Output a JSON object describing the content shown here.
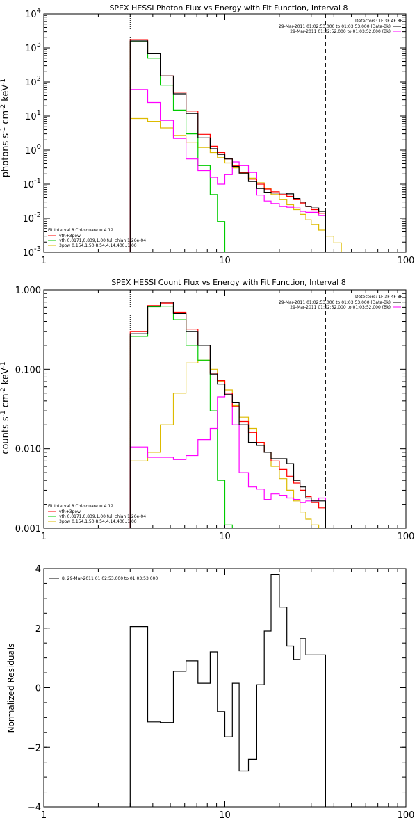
{
  "chart_data": [
    {
      "type": "line",
      "title": "SPEX HESSI Photon Flux vs Energy with Fit Function, Interval 8",
      "xlabel": "",
      "ylabel": "photons s⁻¹ cm⁻² keV⁻¹",
      "xscale": "log",
      "yscale": "log",
      "xlim": [
        1,
        100
      ],
      "ylim": [
        0.001,
        10000
      ],
      "x_ticks": [
        {
          "v": 1,
          "label": "1"
        },
        {
          "v": 10,
          "label": "10"
        },
        {
          "v": 100,
          "label": "100"
        }
      ],
      "y_ticks": [
        {
          "v": 0.001,
          "b": "10",
          "e": "-3"
        },
        {
          "v": 0.01,
          "b": "10",
          "e": "-2"
        },
        {
          "v": 0.1,
          "b": "10",
          "e": "-1"
        },
        {
          "v": 1,
          "b": "10",
          "e": "0"
        },
        {
          "v": 10,
          "b": "10",
          "e": "1"
        },
        {
          "v": 100,
          "b": "10",
          "e": "2"
        },
        {
          "v": 1000,
          "b": "10",
          "e": "3"
        },
        {
          "v": 10000,
          "b": "10",
          "e": "4"
        }
      ],
      "vlines": [
        {
          "x": 3,
          "style": "dotted"
        },
        {
          "x": 36,
          "style": "dashed"
        }
      ],
      "detectors": "Detectors: 1F 3F 4F 8F",
      "legend_top": [
        {
          "text": "29-Mar-2011 01:02:53.000 to 01:03:53.000 (Data-Bk)",
          "color": "#000000"
        },
        {
          "text": "29-Mar-2011 01:02:52.000 to 01:03:52.000 (Bk)",
          "color": "#ff00ff"
        }
      ],
      "fit_title": "Fit Interval 8   Chi-square = 4.12",
      "legend_bottom": [
        {
          "text": "vth+3pow",
          "color": "#ff0000"
        },
        {
          "text": "vth 0.0171,0.839,1.00  full chian 1.26e-04",
          "color": "#00cc00"
        },
        {
          "text": "3pow 0.154,1.50,8.54,4.14,400.,1.00",
          "color": "#ddbb00"
        }
      ],
      "bin_edges": [
        3,
        3.75,
        4.4,
        5.2,
        6.1,
        7.1,
        8.3,
        9.1,
        10,
        11,
        12,
        13.5,
        15,
        16.5,
        18,
        20,
        22,
        24,
        26,
        28,
        30,
        33,
        36,
        40,
        44
      ],
      "series": [
        {
          "name": "Data-Bk",
          "color": "#000000",
          "values": [
            1600,
            700,
            150,
            45,
            12,
            2.3,
            1.1,
            0.75,
            0.55,
            0.33,
            0.21,
            0.12,
            0.075,
            0.058,
            0.055,
            0.055,
            0.052,
            0.038,
            0.03,
            0.022,
            0.02,
            0.016,
            null,
            null
          ]
        },
        {
          "name": "vth+3pow",
          "color": "#ff0000",
          "values": [
            1750,
            700,
            150,
            50,
            14,
            2.9,
            1.3,
            0.85,
            0.55,
            0.35,
            0.22,
            0.14,
            0.1,
            0.072,
            0.06,
            0.05,
            0.044,
            0.035,
            0.028,
            0.022,
            0.018,
            0.014,
            null,
            null
          ]
        },
        {
          "name": "vth",
          "color": "#00cc00",
          "values": [
            1500,
            500,
            80,
            15,
            3,
            0.35,
            0.05,
            0.008,
            0.0008,
            null,
            null,
            null,
            null,
            null,
            null,
            null,
            null,
            null,
            null,
            null,
            null,
            null,
            null,
            null
          ]
        },
        {
          "name": "3pow",
          "color": "#ddbb00",
          "values": [
            8.5,
            7,
            4.5,
            2.7,
            1.7,
            1.2,
            0.85,
            0.6,
            0.42,
            0.3,
            0.21,
            0.15,
            0.11,
            0.075,
            0.05,
            0.035,
            0.025,
            0.018,
            0.013,
            0.009,
            0.0065,
            0.0045,
            0.003,
            0.0019
          ]
        },
        {
          "name": "Bk",
          "color": "#ff00ff",
          "values": [
            60,
            25,
            7.5,
            2.2,
            0.55,
            0.25,
            0.16,
            0.1,
            0.19,
            0.45,
            0.35,
            0.22,
            0.048,
            0.032,
            0.027,
            0.022,
            0.021,
            0.02,
            0.016,
            0.015,
            0.015,
            0.012,
            null,
            null
          ]
        }
      ]
    },
    {
      "type": "line",
      "title": "SPEX HESSI Count Flux vs Energy with Fit Function, Interval 8",
      "xlabel": "",
      "ylabel": "counts s⁻¹ cm⁻² keV⁻¹",
      "xscale": "log",
      "yscale": "log",
      "xlim": [
        1,
        100
      ],
      "ylim": [
        0.001,
        1
      ],
      "x_ticks": [
        {
          "v": 1,
          "label": "1"
        },
        {
          "v": 10,
          "label": "10"
        },
        {
          "v": 100,
          "label": "100"
        }
      ],
      "y_ticks": [
        {
          "v": 0.001,
          "label": "0.001"
        },
        {
          "v": 0.01,
          "label": "0.010"
        },
        {
          "v": 0.1,
          "label": "0.100"
        },
        {
          "v": 1,
          "label": "1.000"
        }
      ],
      "vlines": [
        {
          "x": 3,
          "style": "dotted"
        },
        {
          "x": 36,
          "style": "dashed"
        }
      ],
      "detectors": "Detectors: 1F 3F 4F 8F",
      "legend_top": [
        {
          "text": "29-Mar-2011 01:02:53.000 to 01:03:53.000 (Data-Bk)",
          "color": "#000000"
        },
        {
          "text": "29-Mar-2011 01:02:52.000 to 01:03:52.000 (Bk)",
          "color": "#ff00ff"
        }
      ],
      "fit_title": "Fit Interval 8   Chi-square = 4.12",
      "legend_bottom": [
        {
          "text": "vth+3pow",
          "color": "#ff0000"
        },
        {
          "text": "vth 0.0171,0.839,1.00  full chian 1.26e-04",
          "color": "#00cc00"
        },
        {
          "text": "3pow 0.154,1.50,8.54,4.14,400.,1.00",
          "color": "#ddbb00"
        }
      ],
      "bin_edges": [
        3,
        3.75,
        4.4,
        5.2,
        6.1,
        7.1,
        8.3,
        9.1,
        10,
        11,
        12,
        13.5,
        15,
        16.5,
        18,
        20,
        22,
        24,
        26,
        28,
        30,
        33,
        36
      ],
      "series": [
        {
          "name": "Data-Bk",
          "color": "#000000",
          "values": [
            0.28,
            0.62,
            0.7,
            0.5,
            0.3,
            0.2,
            0.087,
            0.065,
            0.048,
            0.038,
            0.02,
            0.012,
            0.011,
            0.009,
            0.0075,
            0.0075,
            0.0065,
            0.004,
            0.0033,
            0.0024,
            0.0022,
            0.0022
          ]
        },
        {
          "name": "vth+3pow",
          "color": "#ff0000",
          "values": [
            0.3,
            0.63,
            0.68,
            0.52,
            0.32,
            0.2,
            0.09,
            0.072,
            0.05,
            0.034,
            0.022,
            0.016,
            0.012,
            0.009,
            0.007,
            0.0055,
            0.0045,
            0.0037,
            0.003,
            0.0025,
            0.0021,
            0.0018
          ]
        },
        {
          "name": "vth",
          "color": "#00cc00",
          "values": [
            0.26,
            0.61,
            0.62,
            0.42,
            0.2,
            0.13,
            0.03,
            0.004,
            0.0011,
            0.0001,
            null,
            null,
            null,
            null,
            null,
            null,
            null,
            null,
            null,
            null,
            null,
            null
          ]
        },
        {
          "name": "3pow",
          "color": "#ddbb00",
          "values": [
            0.007,
            0.009,
            0.02,
            0.05,
            0.12,
            0.13,
            0.1,
            0.07,
            0.055,
            0.035,
            0.025,
            0.018,
            0.012,
            0.009,
            0.006,
            0.0042,
            0.003,
            0.0022,
            0.0016,
            0.0013,
            0.0011,
            0.0009
          ]
        },
        {
          "name": "Bk",
          "color": "#ff00ff",
          "values": [
            0.0105,
            0.0078,
            0.0078,
            0.0073,
            0.0082,
            0.013,
            0.018,
            0.045,
            0.05,
            0.02,
            0.005,
            0.0033,
            0.0031,
            0.0023,
            0.0027,
            0.0026,
            0.0024,
            0.0023,
            0.0021,
            0.0022,
            0.0022,
            0.0024
          ]
        }
      ]
    },
    {
      "type": "line",
      "title": "",
      "xlabel": "",
      "ylabel": "Normalized Residuals",
      "xscale": "log",
      "yscale": "linear",
      "xlim": [
        1,
        100
      ],
      "ylim": [
        -4,
        4
      ],
      "x_ticks": [
        {
          "v": 1,
          "label": "1"
        },
        {
          "v": 10,
          "label": "10"
        },
        {
          "v": 100,
          "label": "100"
        }
      ],
      "y_ticks": [
        {
          "v": -4,
          "label": "−4"
        },
        {
          "v": -2,
          "label": "−2"
        },
        {
          "v": 0,
          "label": "0"
        },
        {
          "v": 2,
          "label": "2"
        },
        {
          "v": 4,
          "label": "4"
        }
      ],
      "legend": "8, 29-Mar-2011 01:02:53.000 to 01:03:53.000",
      "bin_edges": [
        3,
        3.75,
        4.4,
        5.2,
        6.1,
        7.1,
        8.3,
        9.1,
        10,
        11,
        12,
        13.5,
        15,
        16.5,
        18,
        20,
        22,
        24,
        26,
        28,
        30,
        33,
        36
      ],
      "series": [
        {
          "name": "8, 29-Mar-2011 01:02:53.000 to 01:03:53.000",
          "color": "#000000",
          "values": [
            2.05,
            -1.15,
            -1.17,
            0.55,
            0.9,
            0.15,
            1.2,
            -0.8,
            -1.65,
            0.15,
            -2.8,
            -2.4,
            0.1,
            1.9,
            3.8,
            2.7,
            1.4,
            0.95,
            1.65,
            1.1,
            1.1,
            1.1
          ]
        }
      ]
    }
  ]
}
